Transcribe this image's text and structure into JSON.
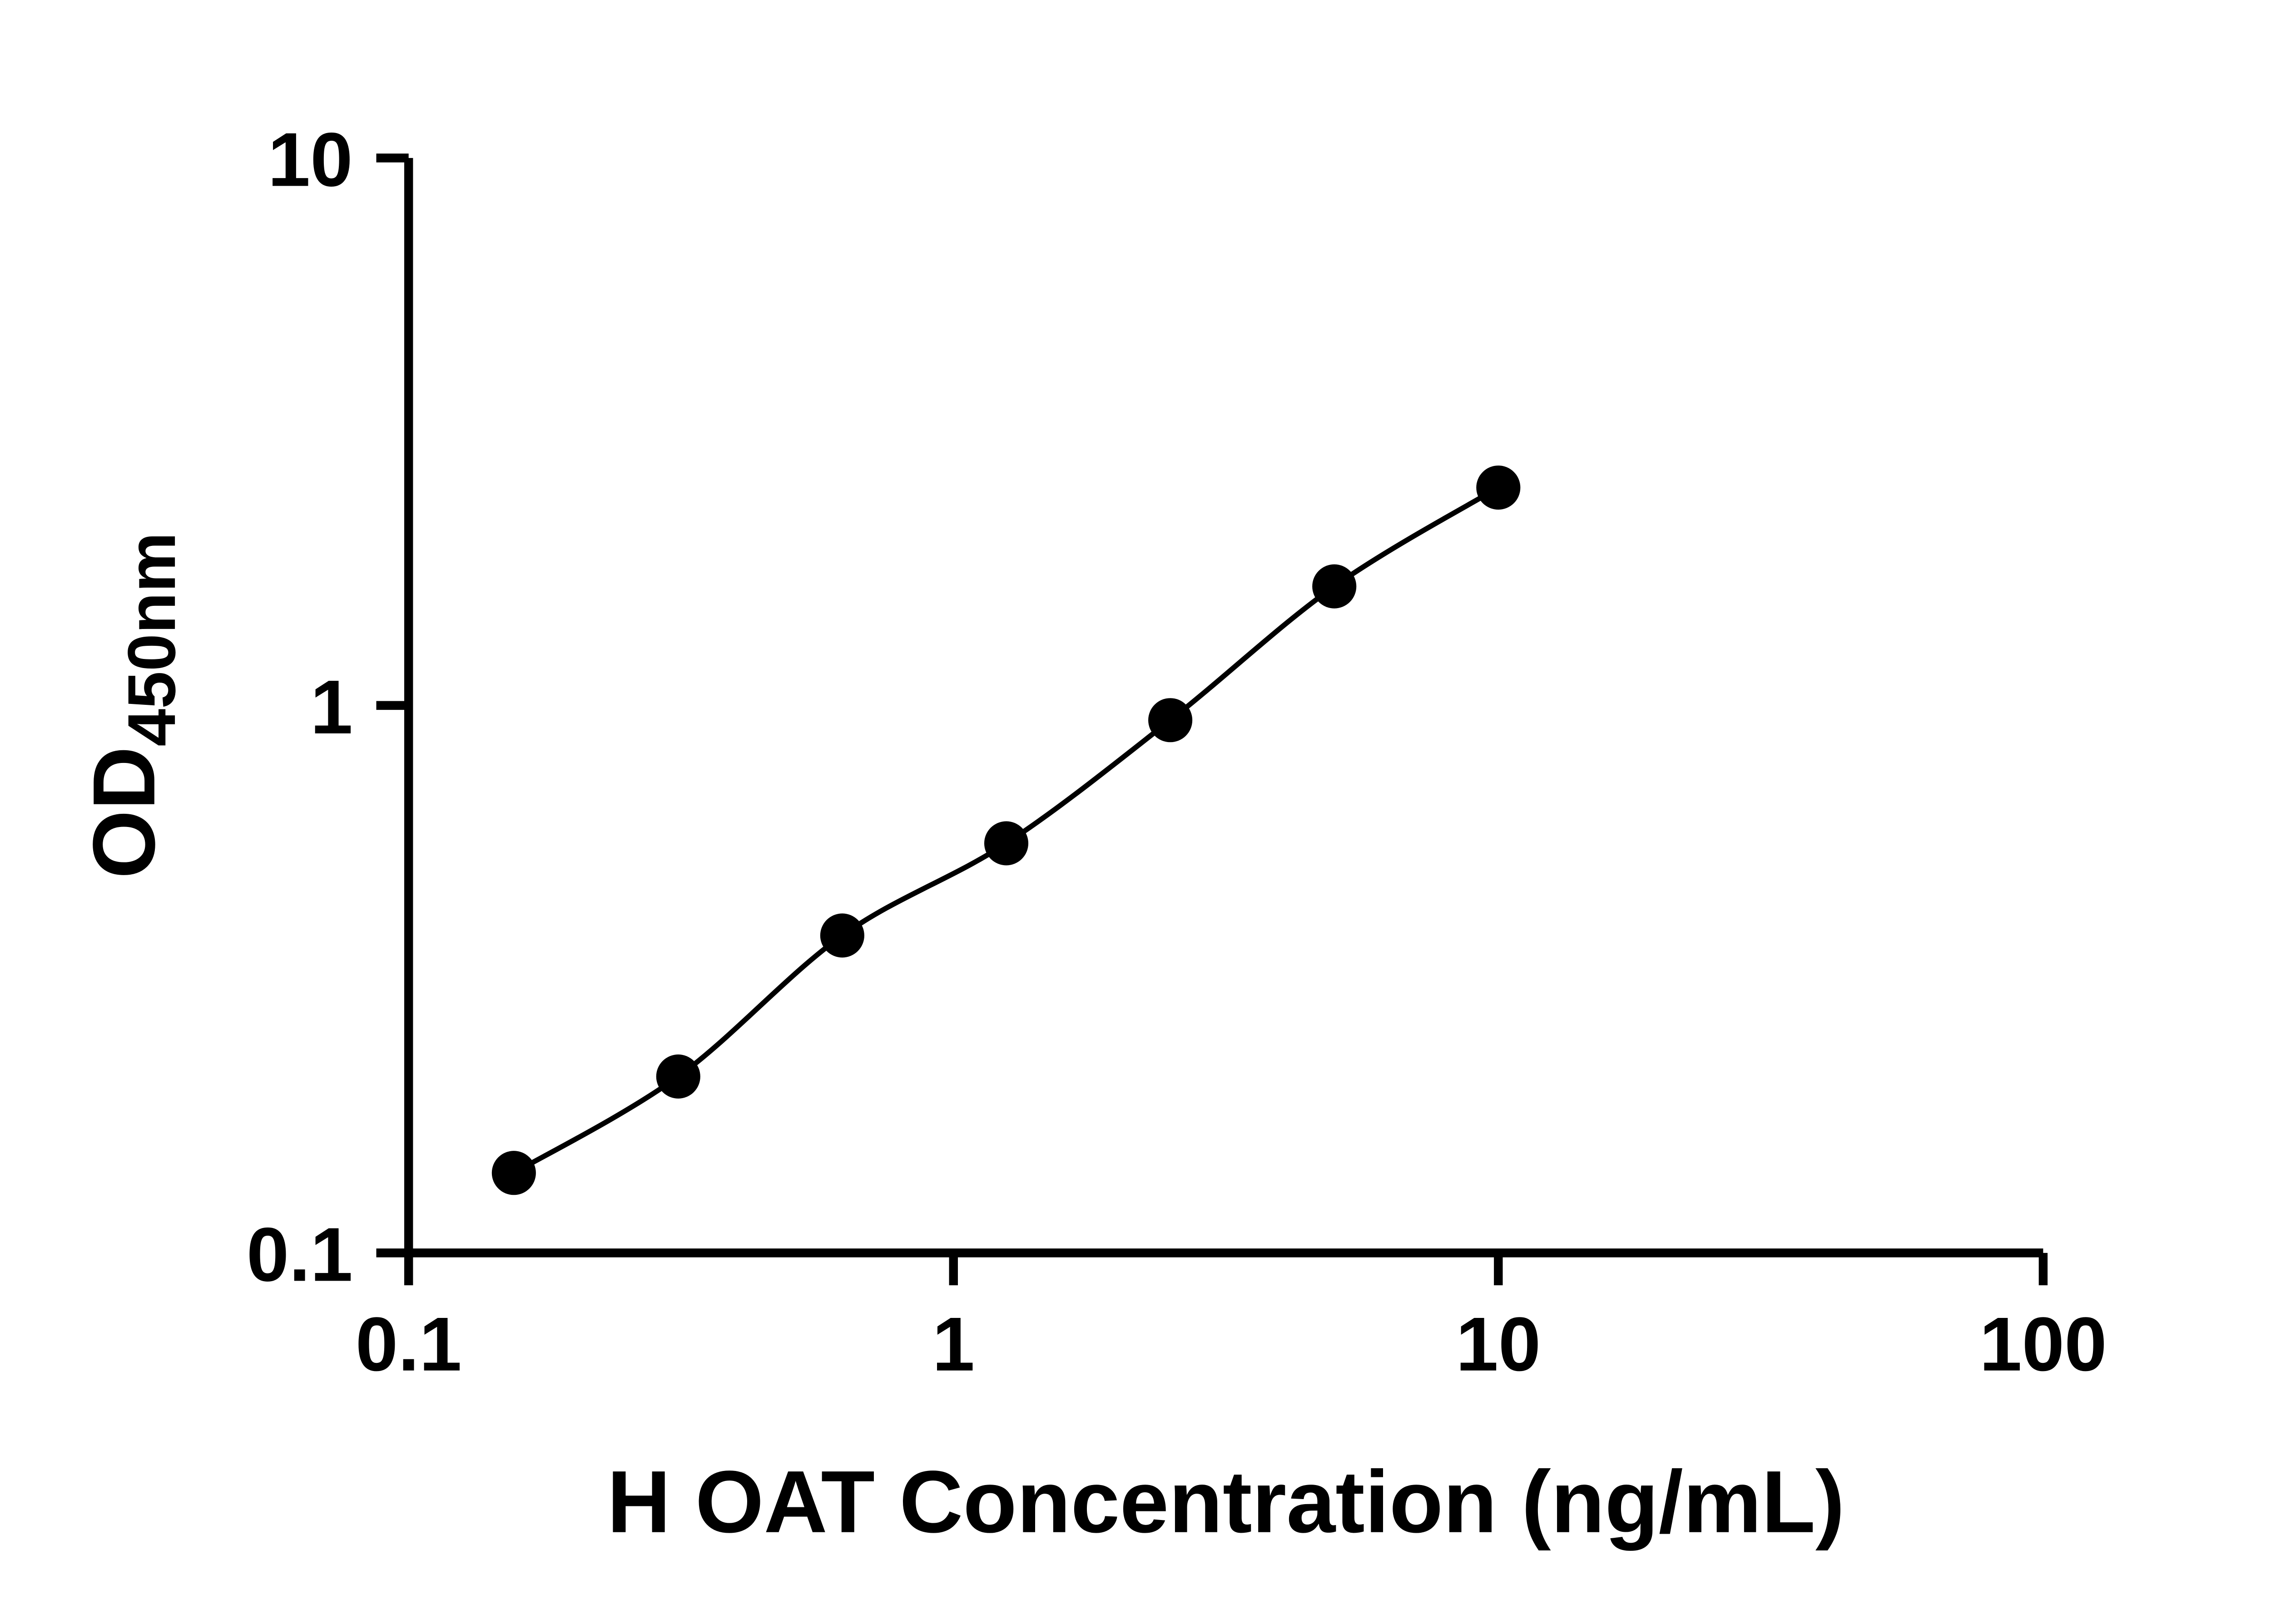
{
  "figure": {
    "background_color": "#ffffff",
    "axis_color": "#000000",
    "marker_color": "#000000",
    "curve_color": "#000000"
  },
  "chart_data": {
    "type": "scatter",
    "subtype": "standard-curve-with-fit-line",
    "title": "",
    "xlabel": "H OAT Concentration (ng/mL)",
    "ylabel_main": "OD",
    "ylabel_sub": "450nm",
    "x_scale": "log",
    "y_scale": "log",
    "xlim": [
      0.1,
      100
    ],
    "ylim": [
      0.1,
      10
    ],
    "grid": false,
    "legend": "none",
    "marker": "filled-circle",
    "line": "smooth",
    "x": [
      0.156,
      0.3125,
      0.625,
      1.25,
      2.5,
      5,
      10
    ],
    "y": [
      0.14,
      0.21,
      0.38,
      0.56,
      0.94,
      1.65,
      2.5
    ],
    "x_ticks": [
      {
        "value": 0.1,
        "label": "0.1"
      },
      {
        "value": 1,
        "label": "1"
      },
      {
        "value": 10,
        "label": "10"
      },
      {
        "value": 100,
        "label": "100"
      }
    ],
    "y_ticks": [
      {
        "value": 0.1,
        "label": "0.1"
      },
      {
        "value": 1,
        "label": "1"
      },
      {
        "value": 10,
        "label": "10"
      }
    ]
  }
}
